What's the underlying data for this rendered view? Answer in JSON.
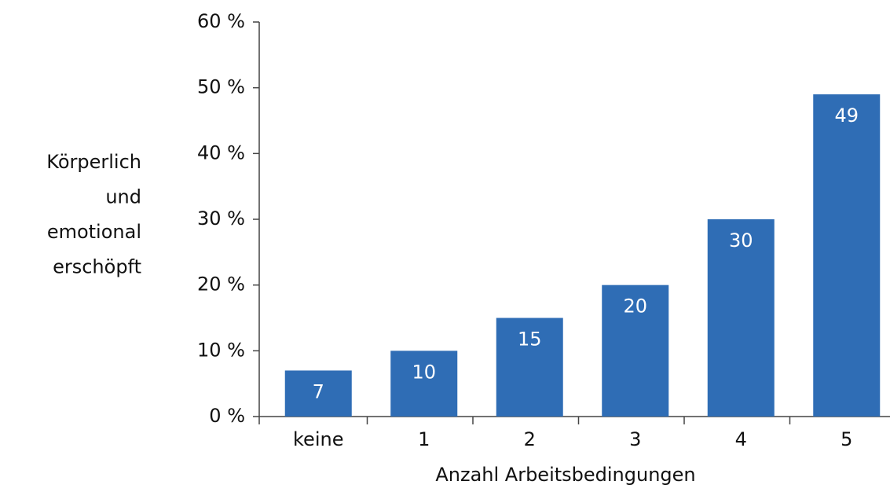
{
  "chart_data": {
    "type": "bar",
    "y_label": [
      "Körperlich",
      "und",
      "emotional",
      "erschöpft"
    ],
    "x_label": "Anzahl Arbeitsbedingungen",
    "categories": [
      "keine",
      "1",
      "2",
      "3",
      "4",
      "5"
    ],
    "values": [
      7,
      10,
      15,
      20,
      30,
      49
    ],
    "color": "#2f6db5",
    "ylim": [
      0,
      60
    ],
    "yticks": [
      {
        "value": 0,
        "label": "0 %"
      },
      {
        "value": 10,
        "label": "10 %"
      },
      {
        "value": 20,
        "label": "20 %"
      },
      {
        "value": 30,
        "label": "30 %"
      },
      {
        "value": 40,
        "label": "40 %"
      },
      {
        "value": 50,
        "label": "50 %"
      },
      {
        "value": 60,
        "label": "60 %"
      }
    ],
    "grid": false
  }
}
